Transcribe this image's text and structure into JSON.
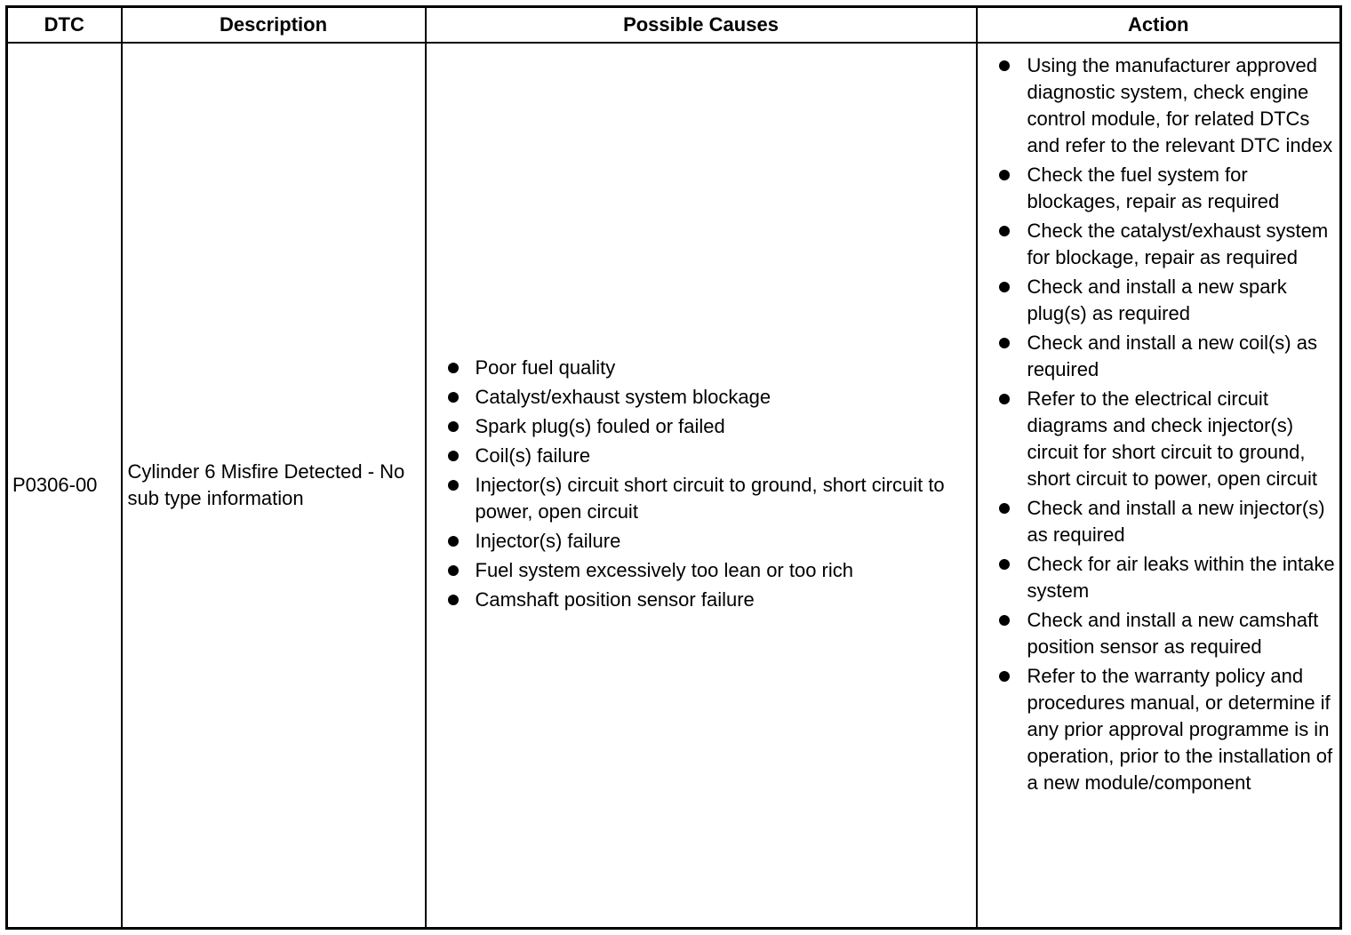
{
  "headers": {
    "dtc": "DTC",
    "description": "Description",
    "causes": "Possible Causes",
    "action": "Action"
  },
  "row": {
    "dtc": "P0306-00",
    "description": "Cylinder 6 Misfire Detected - No sub type information",
    "causes": [
      "Poor fuel quality",
      "Catalyst/exhaust system blockage",
      "Spark plug(s) fouled or failed",
      "Coil(s) failure",
      "Injector(s) circuit short circuit to ground, short circuit to power, open circuit",
      "Injector(s) failure",
      "Fuel system excessively too lean or too rich",
      "Camshaft position sensor failure"
    ],
    "actions": [
      "Using the manufacturer approved diagnostic system, check engine control module, for related DTCs and refer to the relevant DTC index",
      "Check the fuel system for blockages, repair as required",
      "Check the catalyst/exhaust system for blockage, repair as required",
      "Check and install a new spark plug(s) as required",
      "Check and install a new coil(s) as required",
      "Refer to the electrical circuit diagrams and check injector(s) circuit for short circuit to ground, short circuit to power, open circuit",
      "Check and install a new injector(s) as required",
      "Check for air leaks within the intake system",
      "Check and install a new camshaft position sensor as required",
      "Refer to the warranty policy and procedures manual, or determine if any prior approval programme is in operation, prior to the installation of a new module/component"
    ]
  }
}
